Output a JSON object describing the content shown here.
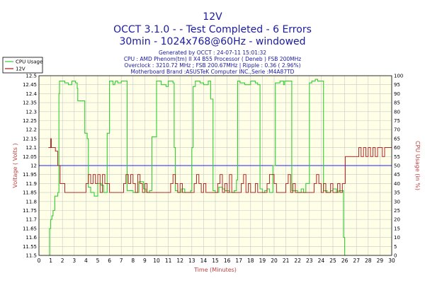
{
  "header": {
    "title": "12V",
    "line1": "OCCT 3.1.0 -  - Test Completed - 6 Errors",
    "line2": "30min - 1024x768@60Hz - windowed",
    "info": [
      "Generated by OCCT : 24-07-11 15:01:32",
      "CPU : AMD Phenom(tm) II X4 B55 Processor ( Deneb ) FSB 200MHz",
      "Overclock : 3210.72 MHz ; FSB 200.67MHz | Ripple : 0.36 ( 2.96%)",
      "Motherboard Brand :ASUSTeK Computer INC.,Serie :M4A87TD"
    ]
  },
  "legend": {
    "items": [
      {
        "label": "CPU Usage",
        "color": "#33cc33"
      },
      {
        "label": "12V",
        "color": "#aa1111"
      }
    ]
  },
  "colors": {
    "cpu": "#33cc33",
    "voltage": "#aa1111",
    "reference": "#2222ff",
    "plot_bg": "#ffffe8",
    "grid": "#c8c8c8",
    "title": "#1a1aa0",
    "axis_label": "#c04040"
  },
  "chart_data": {
    "type": "line",
    "title": "12V",
    "xlabel": "Time (Minutes)",
    "ylabel_left": "Voltage ( Volts )",
    "ylabel_right": "CPU Usage (in %)",
    "xlim": [
      0,
      30
    ],
    "ylim_left": [
      11.5,
      12.5
    ],
    "ylim_right": [
      0,
      100
    ],
    "x_ticks": [
      0,
      1,
      2,
      3,
      4,
      5,
      6,
      7,
      8,
      9,
      10,
      11,
      12,
      13,
      14,
      15,
      16,
      17,
      18,
      19,
      20,
      21,
      22,
      23,
      24,
      25,
      26,
      27,
      28,
      29,
      30
    ],
    "y_ticks_left": [
      11.5,
      11.55,
      11.6,
      11.65,
      11.7,
      11.75,
      11.8,
      11.85,
      11.9,
      11.95,
      12.0,
      12.05,
      12.1,
      12.15,
      12.2,
      12.25,
      12.3,
      12.35,
      12.4,
      12.45,
      12.5
    ],
    "y_ticks_right": [
      0,
      5,
      10,
      15,
      20,
      25,
      30,
      35,
      40,
      45,
      50,
      55,
      60,
      65,
      70,
      75,
      80,
      85,
      90,
      95,
      100
    ],
    "grid": true,
    "legend_position": "top-left",
    "reference_line": {
      "axis": "left",
      "value": 12.0
    },
    "series": [
      {
        "name": "CPU Usage",
        "axis": "right",
        "x": [
          0.85,
          0.9,
          1.0,
          1.1,
          1.2,
          1.35,
          1.6,
          1.7,
          1.75,
          1.9,
          2.2,
          2.5,
          2.8,
          3.1,
          3.25,
          3.3,
          3.5,
          3.9,
          4.1,
          4.2,
          4.4,
          4.7,
          5.0,
          5.3,
          5.5,
          5.8,
          6.0,
          6.3,
          6.45,
          6.5,
          6.7,
          7.0,
          7.2,
          7.5,
          8.0,
          8.5,
          8.9,
          9.1,
          9.4,
          9.6,
          10.0,
          10.4,
          10.8,
          11.0,
          11.2,
          11.4,
          11.5,
          11.6,
          11.8,
          12.1,
          12.4,
          12.7,
          12.9,
          13.0,
          13.1,
          13.3,
          13.7,
          14.0,
          14.4,
          14.6,
          14.8,
          15.0,
          15.3,
          15.6,
          15.8,
          16.2,
          16.6,
          16.8,
          16.9,
          17.1,
          17.5,
          18.0,
          18.4,
          18.6,
          18.8,
          19.0,
          19.2,
          19.4,
          19.6,
          19.9,
          20.1,
          20.5,
          20.8,
          20.9,
          21.1,
          21.5,
          22.0,
          22.3,
          22.5,
          22.7,
          23.0,
          23.2,
          23.5,
          23.7,
          23.9,
          24.2,
          24.5,
          24.8,
          25.0,
          25.3,
          25.5,
          25.8,
          25.9,
          26.0,
          26.1
        ],
        "values": [
          0,
          15,
          20,
          22,
          25,
          33,
          35,
          90,
          97,
          97,
          96,
          95,
          97,
          96,
          93,
          86,
          86,
          68,
          65,
          38,
          35,
          33,
          40,
          39,
          35,
          68,
          97,
          95,
          96,
          97,
          96,
          97,
          97,
          36,
          35,
          41,
          37,
          35,
          36,
          66,
          97,
          95,
          94,
          97,
          97,
          96,
          60,
          36,
          35,
          37,
          35,
          35,
          36,
          60,
          94,
          97,
          96,
          95,
          97,
          87,
          36,
          35,
          38,
          37,
          36,
          35,
          36,
          42,
          97,
          96,
          95,
          97,
          96,
          95,
          37,
          35,
          36,
          37,
          35,
          50,
          96,
          97,
          95,
          97,
          97,
          36,
          35,
          37,
          35,
          40,
          96,
          97,
          98,
          97,
          97,
          36,
          35,
          36,
          37,
          35,
          36,
          36,
          10,
          0,
          0
        ]
      },
      {
        "name": "12V",
        "axis": "left",
        "x": [
          0.8,
          1.0,
          1.05,
          1.2,
          1.4,
          1.6,
          1.8,
          2.0,
          2.2,
          2.4,
          2.8,
          3.0,
          3.2,
          3.4,
          3.6,
          3.8,
          4.0,
          4.2,
          4.4,
          4.6,
          4.8,
          5.0,
          5.2,
          5.4,
          5.6,
          5.8,
          6.0,
          6.2,
          6.4,
          6.6,
          6.8,
          7.0,
          7.2,
          7.4,
          7.6,
          7.8,
          8.0,
          8.2,
          8.4,
          8.6,
          8.8,
          9.0,
          9.2,
          9.4,
          9.6,
          9.8,
          10.0,
          10.2,
          10.4,
          10.6,
          10.8,
          11.0,
          11.2,
          11.4,
          11.6,
          11.8,
          12.0,
          12.2,
          12.4,
          12.6,
          12.8,
          13.0,
          13.2,
          13.4,
          13.6,
          13.8,
          14.0,
          14.2,
          14.4,
          14.6,
          14.8,
          15.0,
          15.2,
          15.4,
          15.6,
          15.8,
          16.0,
          16.2,
          16.4,
          16.6,
          16.8,
          17.0,
          17.2,
          17.4,
          17.6,
          17.8,
          18.0,
          18.2,
          18.4,
          18.6,
          18.8,
          19.0,
          19.2,
          19.4,
          19.6,
          19.8,
          20.0,
          20.2,
          20.4,
          20.6,
          20.8,
          21.0,
          21.2,
          21.4,
          21.6,
          21.8,
          22.0,
          22.2,
          22.4,
          22.6,
          22.8,
          23.0,
          23.2,
          23.4,
          23.6,
          23.8,
          24.0,
          24.2,
          24.4,
          24.6,
          24.8,
          25.0,
          25.2,
          25.4,
          25.6,
          25.8,
          26.0,
          26.05,
          26.6,
          27.0,
          27.2,
          27.4,
          27.6,
          27.8,
          28.0,
          28.2,
          28.4,
          28.6,
          28.8,
          29.0,
          29.2,
          29.4,
          29.6,
          29.8,
          30.0
        ],
        "values": [
          12.1,
          12.15,
          12.1,
          12.1,
          12.08,
          12.0,
          11.9,
          11.9,
          11.85,
          11.85,
          11.85,
          11.85,
          11.85,
          11.85,
          11.85,
          11.85,
          11.9,
          11.95,
          11.9,
          11.95,
          11.9,
          11.95,
          11.85,
          11.95,
          11.9,
          11.9,
          11.85,
          11.85,
          11.85,
          11.85,
          11.85,
          11.85,
          11.9,
          11.95,
          11.9,
          11.95,
          11.9,
          11.85,
          11.95,
          11.9,
          11.85,
          11.9,
          11.85,
          11.85,
          11.85,
          11.85,
          11.85,
          11.85,
          11.85,
          11.85,
          11.85,
          11.85,
          11.9,
          11.95,
          11.9,
          11.85,
          11.9,
          11.85,
          11.85,
          11.85,
          11.85,
          11.85,
          11.9,
          11.95,
          11.9,
          11.85,
          11.9,
          11.85,
          11.85,
          11.85,
          11.85,
          11.85,
          11.9,
          11.95,
          11.85,
          11.9,
          11.85,
          11.95,
          11.85,
          11.85,
          11.85,
          11.85,
          11.9,
          11.95,
          11.85,
          11.9,
          11.85,
          11.85,
          11.9,
          11.85,
          11.85,
          11.85,
          11.85,
          11.9,
          11.95,
          11.95,
          11.9,
          11.85,
          11.85,
          11.85,
          11.85,
          11.9,
          11.95,
          11.85,
          11.9,
          11.85,
          11.85,
          11.85,
          11.85,
          11.85,
          11.85,
          11.85,
          11.85,
          11.9,
          11.95,
          11.9,
          11.85,
          11.9,
          11.85,
          11.85,
          11.9,
          11.85,
          11.85,
          11.9,
          11.85,
          11.9,
          11.9,
          12.05,
          12.05,
          12.05,
          12.1,
          12.05,
          12.1,
          12.05,
          12.1,
          12.05,
          12.1,
          12.05,
          12.1,
          12.1,
          12.05,
          12.1,
          12.1,
          12.1,
          12.1
        ]
      }
    ]
  }
}
